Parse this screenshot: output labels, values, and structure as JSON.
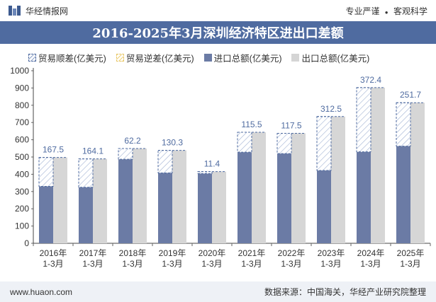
{
  "header": {
    "brand": "华经情报网",
    "tagline_left": "专业严谨",
    "separator": "●",
    "tagline_right": "客观科学"
  },
  "chart_data": {
    "type": "bar",
    "title": "2016-2025年3月深圳经济特区进出口差额",
    "categories": [
      "2016年\n1-3月",
      "2017年\n1-3月",
      "2018年\n1-3月",
      "2019年\n1-3月",
      "2020年\n1-3月",
      "2021年\n1-3月",
      "2022年\n1-3月",
      "2023年\n1-3月",
      "2024年\n1-3月",
      "2025年\n1-3月"
    ],
    "series": [
      {
        "name": "贸易顺差(亿美元)",
        "values": [
          167.5,
          164.1,
          62.2,
          130.3,
          11.4,
          115.5,
          117.5,
          312.5,
          372.4,
          251.7
        ]
      },
      {
        "name": "贸易逆差(亿美元)",
        "values": [
          0,
          0,
          0,
          0,
          0,
          0,
          0,
          0,
          0,
          0
        ]
      },
      {
        "name": "进口总额(亿美元)",
        "values": [
          330,
          325,
          487,
          408,
          404,
          528,
          520,
          422,
          530,
          563
        ]
      },
      {
        "name": "出口总额(亿美元)",
        "values": [
          497.5,
          489.1,
          549.2,
          538.3,
          415.4,
          643.5,
          637.5,
          734.5,
          902.4,
          814.7
        ]
      }
    ],
    "data_labels": [
      "167.5",
      "164.1",
      "62.2",
      "130.3",
      "11.4",
      "115.5",
      "117.5",
      "312.5",
      "372.4",
      "251.7"
    ],
    "ylim": [
      0,
      1000
    ],
    "yticks": [
      0,
      100,
      200,
      300,
      400,
      500,
      600,
      700,
      800,
      900,
      1000
    ],
    "xlabel": "",
    "ylabel": ""
  },
  "colors": {
    "import": "#6b7ba5",
    "export": "#d6d6d6",
    "surplus_line": "#4f6ba0",
    "title_bg": "#4f6ba0"
  },
  "footer": {
    "website": "www.huaon.com",
    "source": "数据来源：中国海关，华经产业研究院整理"
  }
}
